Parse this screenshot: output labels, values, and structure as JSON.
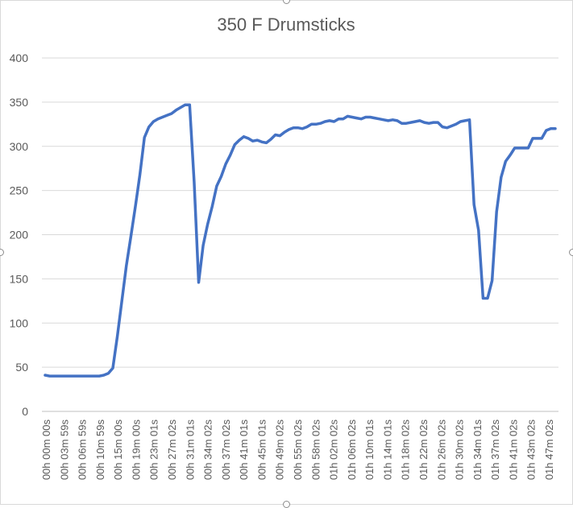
{
  "chart_data": {
    "type": "line",
    "title": "350 F Drumsticks",
    "xlabel": "",
    "ylabel": "",
    "ylim": [
      0,
      400
    ],
    "y_ticks": [
      0,
      50,
      100,
      150,
      200,
      250,
      300,
      350,
      400
    ],
    "grid": "horizontal",
    "legend": "none",
    "x_tick_labels": [
      "00h 00m 00s",
      "00h 03m 59s",
      "00h 06m 59s",
      "00h 10m 59s",
      "00h 15m 00s",
      "00h 19m 00s",
      "00h 23m 01s",
      "00h 27m 02s",
      "00h 31m 01s",
      "00h 34m 02s",
      "00h 37m 02s",
      "00h 41m 01s",
      "00h 45m 01s",
      "00h 49m 02s",
      "00h 55m 02s",
      "00h 58m 02s",
      "01h 02m 02s",
      "01h 06m 02s",
      "01h 10m 01s",
      "01h 14m 01s",
      "01h 18m 02s",
      "01h 22m 02s",
      "01h 26m 02s",
      "01h 30m 02s",
      "01h 34m 01s",
      "01h 37m 02s",
      "01h 41m 02s",
      "01h 43m 02s",
      "01h 47m 02s"
    ],
    "series": [
      {
        "color": "#4472c4",
        "values": [
          41,
          40,
          40,
          40,
          40,
          40,
          40,
          40,
          40,
          40,
          40,
          40,
          40,
          41,
          43,
          49,
          85,
          125,
          165,
          198,
          232,
          268,
          310,
          322,
          328,
          331,
          333,
          335,
          337,
          341,
          344,
          347,
          347,
          260,
          146,
          188,
          212,
          232,
          255,
          266,
          280,
          290,
          302,
          307,
          311,
          309,
          306,
          307,
          305,
          304,
          308,
          313,
          312,
          316,
          319,
          321,
          321,
          320,
          322,
          325,
          325,
          326,
          328,
          329,
          328,
          331,
          331,
          334,
          333,
          332,
          331,
          333,
          333,
          332,
          331,
          330,
          329,
          330,
          329,
          326,
          326,
          327,
          328,
          329,
          327,
          326,
          327,
          327,
          322,
          321,
          323,
          325,
          328,
          329,
          330,
          234,
          205,
          128,
          128,
          148,
          226,
          265,
          283,
          290,
          298,
          298,
          298,
          298,
          309,
          309,
          309,
          318,
          320,
          320
        ]
      }
    ]
  }
}
